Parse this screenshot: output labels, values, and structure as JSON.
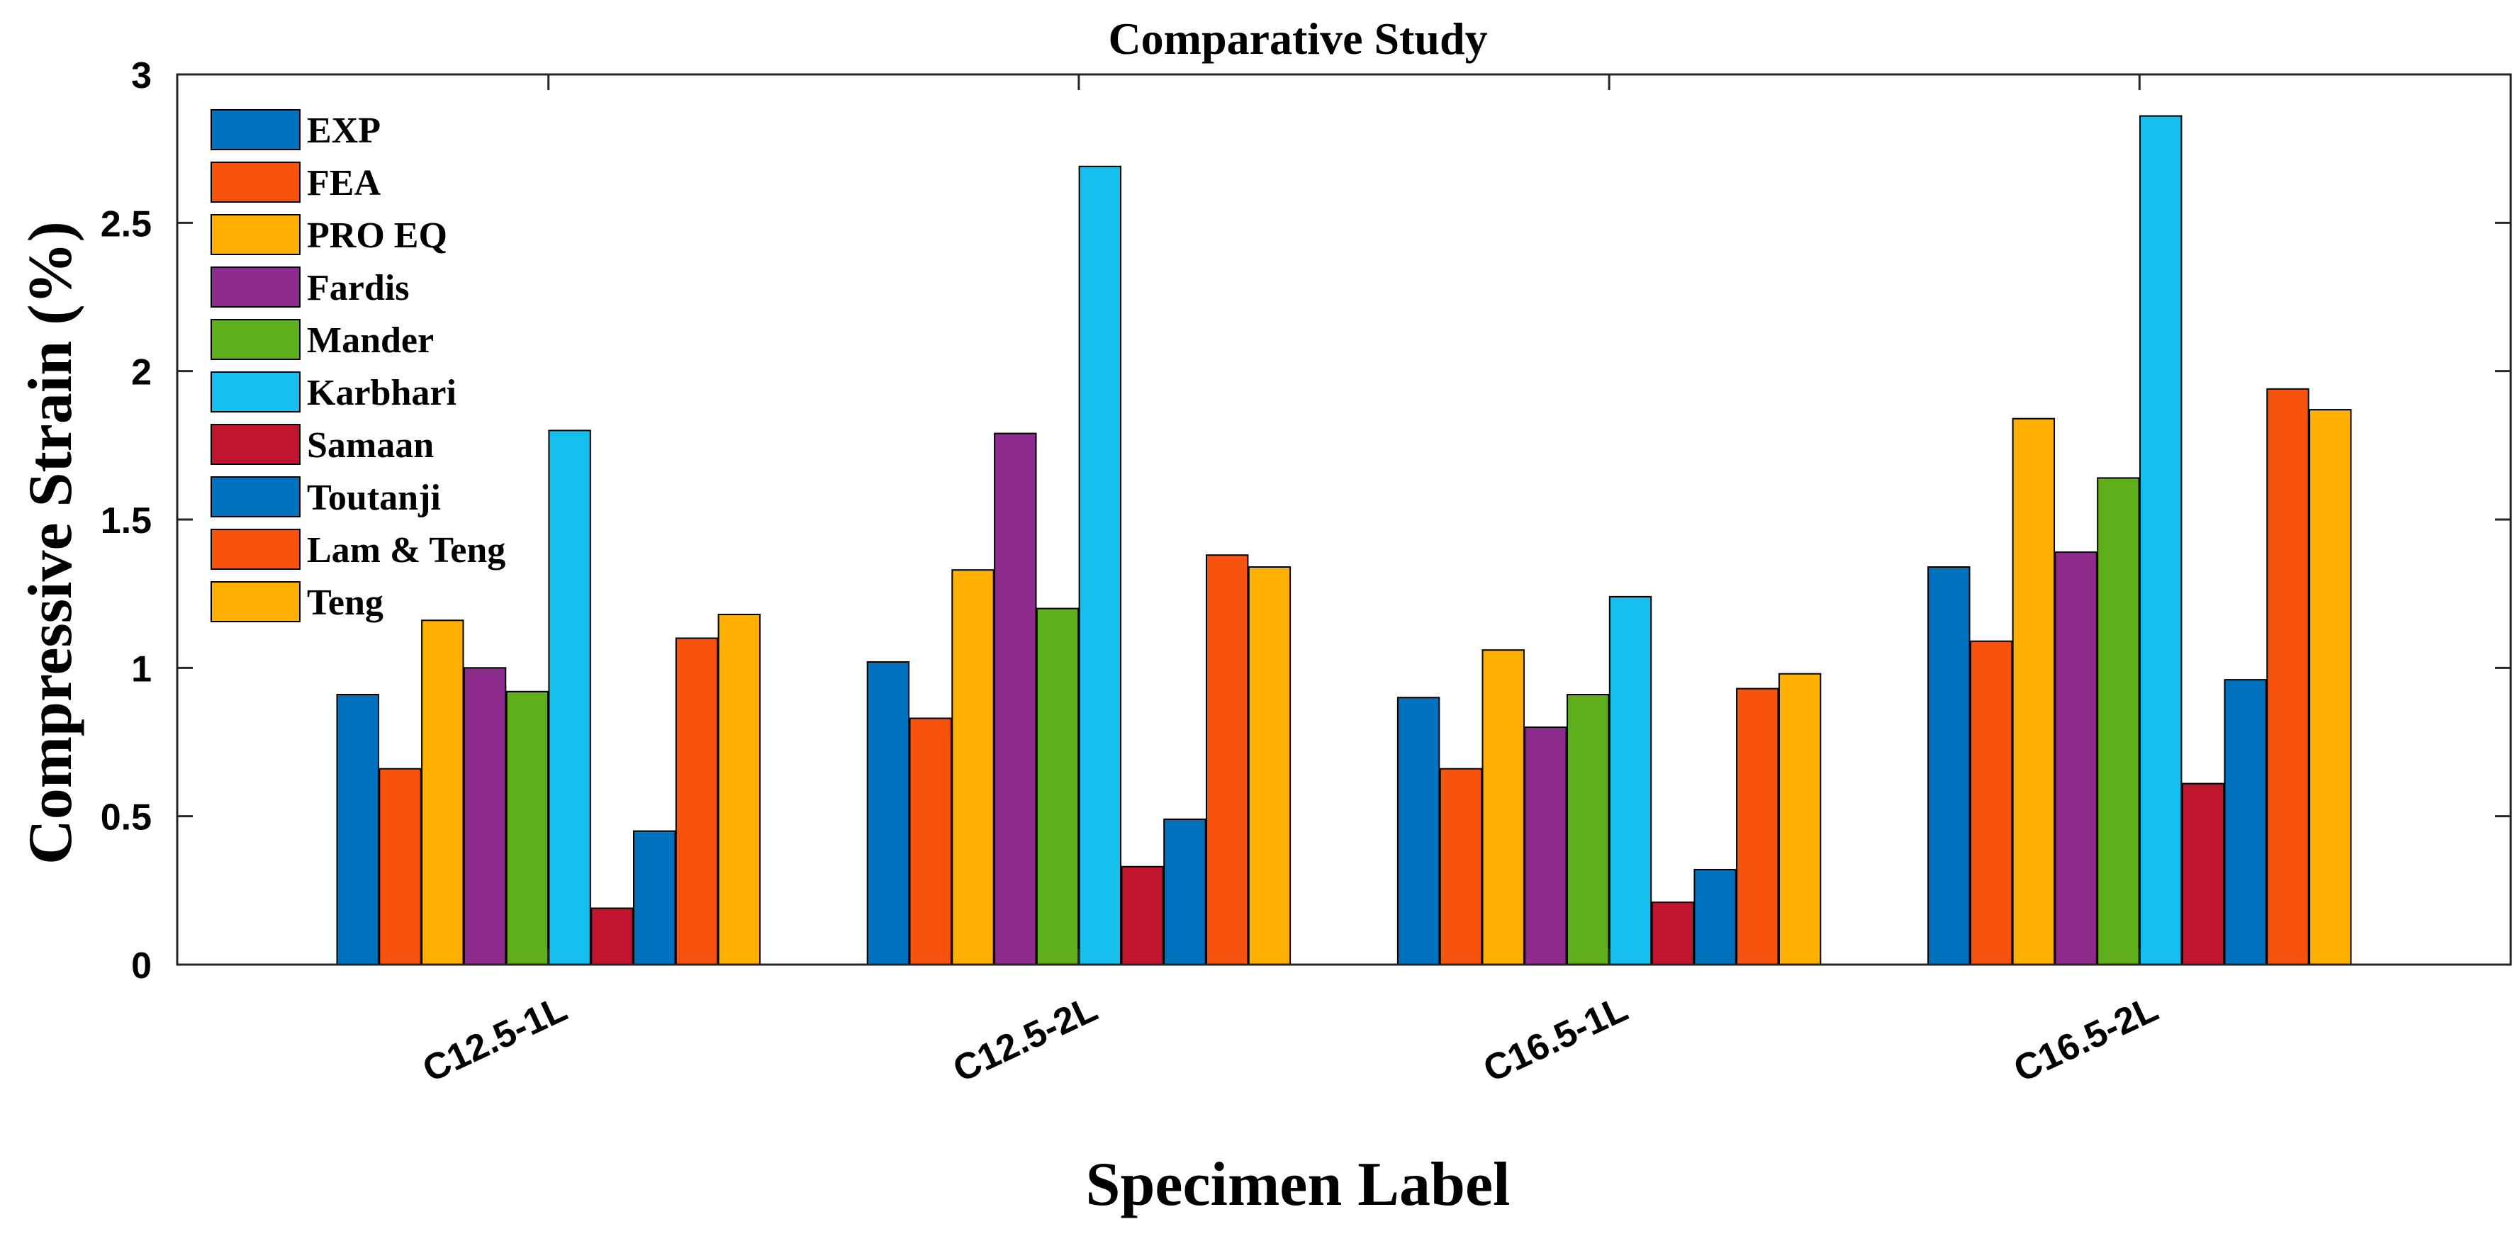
{
  "chart_data": {
    "type": "bar",
    "title": "Comparative Study",
    "xlabel": "Specimen Label",
    "ylabel": "Compressive Strain (%)",
    "ylim": [
      0,
      3
    ],
    "yticks": [
      0,
      0.5,
      1,
      1.5,
      2,
      2.5,
      3
    ],
    "ytick_labels": [
      "0",
      "0.5",
      "1",
      "1.5",
      "2",
      "2.5",
      "3"
    ],
    "categories": [
      "C12.5-1L",
      "C12.5-2L",
      "C16.5-1L",
      "C16.5-2L"
    ],
    "legend_position": "top-left",
    "grid": false,
    "series": [
      {
        "name": "EXP",
        "color": "#0072BD",
        "values": [
          0.91,
          1.02,
          0.9,
          1.34
        ]
      },
      {
        "name": "FEA",
        "color": "#F7530F",
        "values": [
          0.66,
          0.83,
          0.66,
          1.09
        ]
      },
      {
        "name": "PRO EQ",
        "color": "#FFB000",
        "values": [
          1.16,
          1.33,
          1.06,
          1.84
        ]
      },
      {
        "name": "Fardis",
        "color": "#8E2C8E",
        "values": [
          1.0,
          1.79,
          0.8,
          1.39
        ]
      },
      {
        "name": "Mander",
        "color": "#5FAF1D",
        "values": [
          0.92,
          1.2,
          0.91,
          1.64
        ]
      },
      {
        "name": "Karbhari",
        "color": "#16C0EE",
        "values": [
          1.8,
          2.69,
          1.24,
          2.86
        ]
      },
      {
        "name": "Samaan",
        "color": "#C0142F",
        "values": [
          0.19,
          0.33,
          0.21,
          0.61
        ]
      },
      {
        "name": "Toutanji",
        "color": "#0072BD",
        "values": [
          0.45,
          0.49,
          0.32,
          0.96
        ]
      },
      {
        "name": "Lam & Teng",
        "color": "#F7530F",
        "values": [
          1.1,
          1.38,
          0.93,
          1.94
        ]
      },
      {
        "name": "Teng",
        "color": "#FFB000",
        "values": [
          1.18,
          1.34,
          0.98,
          1.87
        ]
      }
    ]
  }
}
